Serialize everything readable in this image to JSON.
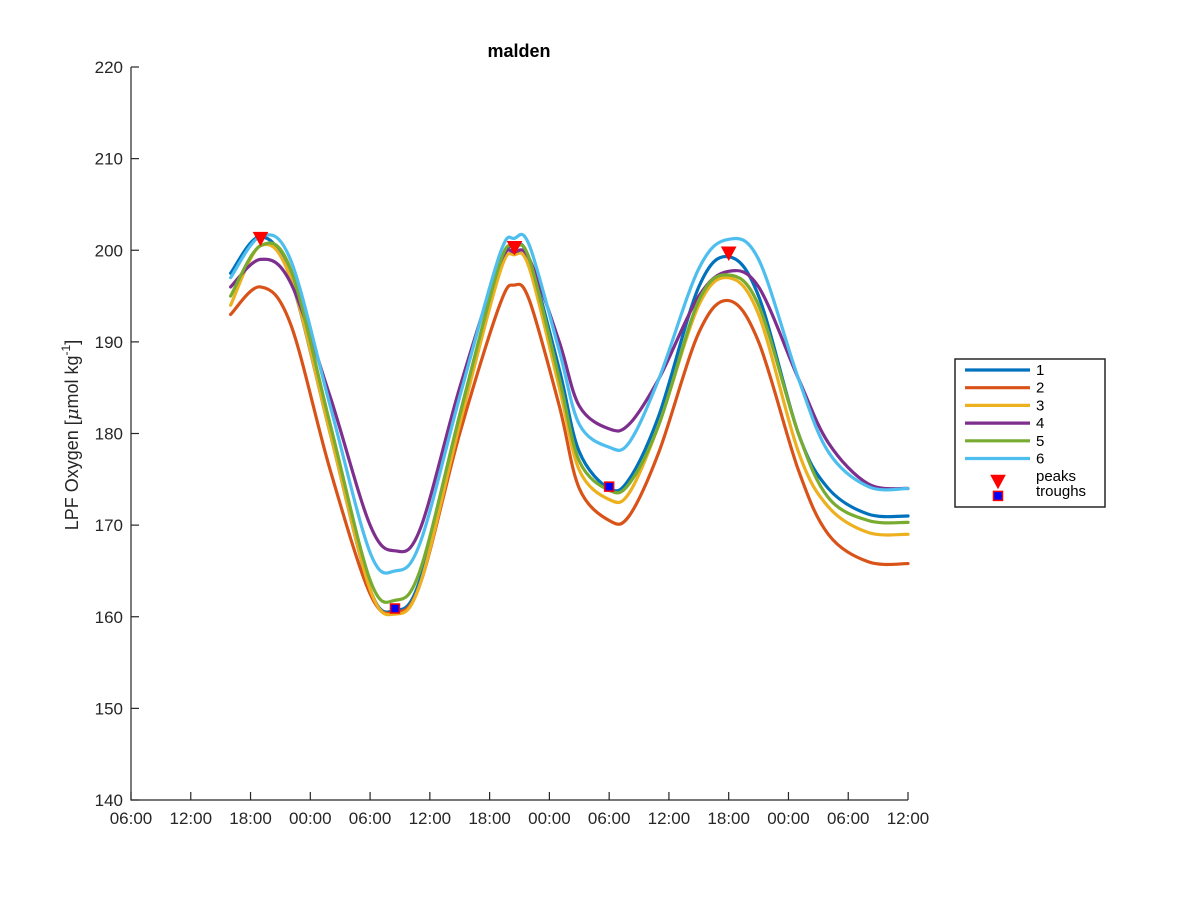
{
  "chart_data": {
    "type": "line",
    "title": "malden",
    "xlabel": "",
    "ylabel": "LPF Oxygen [μmol kg⁻¹]",
    "ylabel_parts": {
      "main": "LPF Oxygen [",
      "mu": "μ",
      "mid": "mol kg",
      "sup": "-1",
      "end": "]"
    },
    "xlim": [
      "06:00",
      "12:00 (+2 days)"
    ],
    "xlim_hours": [
      0,
      78
    ],
    "x_ticks": [
      "06:00",
      "12:00",
      "18:00",
      "00:00",
      "06:00",
      "12:00",
      "18:00",
      "00:00",
      "06:00",
      "12:00",
      "18:00",
      "00:00",
      "06:00",
      "12:00"
    ],
    "ylim": [
      140,
      220
    ],
    "y_ticks": [
      140,
      150,
      160,
      170,
      180,
      190,
      200,
      210,
      220
    ],
    "grid": false,
    "legend_position": "right",
    "series": [
      {
        "name": "1",
        "color": "#0072BD",
        "points": [
          [
            10,
            197.5
          ],
          [
            13,
            201.5
          ],
          [
            16,
            197
          ],
          [
            20,
            180
          ],
          [
            24,
            163
          ],
          [
            26.5,
            160.7
          ],
          [
            29,
            164
          ],
          [
            33,
            182
          ],
          [
            37,
            198
          ],
          [
            38.5,
            200.5
          ],
          [
            40,
            199
          ],
          [
            43,
            187
          ],
          [
            45,
            178
          ],
          [
            48,
            174
          ],
          [
            50,
            175
          ],
          [
            53,
            182
          ],
          [
            57,
            196
          ],
          [
            60,
            199.3
          ],
          [
            63,
            195
          ],
          [
            67,
            180
          ],
          [
            70,
            174
          ],
          [
            74,
            171.2
          ],
          [
            78,
            171
          ]
        ]
      },
      {
        "name": "2",
        "color": "#D95319",
        "points": [
          [
            10,
            193
          ],
          [
            13,
            196
          ],
          [
            16,
            192
          ],
          [
            20,
            176
          ],
          [
            24,
            162.5
          ],
          [
            26.5,
            160.5
          ],
          [
            29,
            163.5
          ],
          [
            33,
            180
          ],
          [
            37,
            194
          ],
          [
            38.5,
            196.2
          ],
          [
            40,
            194.5
          ],
          [
            43,
            183
          ],
          [
            45,
            174
          ],
          [
            48,
            170.5
          ],
          [
            50,
            171
          ],
          [
            53,
            178
          ],
          [
            57,
            191
          ],
          [
            60,
            194.5
          ],
          [
            63,
            190
          ],
          [
            67,
            176
          ],
          [
            70,
            169
          ],
          [
            74,
            166
          ],
          [
            78,
            165.8
          ]
        ]
      },
      {
        "name": "3",
        "color": "#EDB120",
        "points": [
          [
            10,
            194
          ],
          [
            13,
            200.5
          ],
          [
            16,
            197
          ],
          [
            20,
            180
          ],
          [
            24,
            163
          ],
          [
            26.5,
            160.3
          ],
          [
            29,
            163.5
          ],
          [
            33,
            181
          ],
          [
            37,
            197.5
          ],
          [
            38.5,
            199.5
          ],
          [
            40,
            198
          ],
          [
            43,
            185
          ],
          [
            45,
            176
          ],
          [
            48,
            172.8
          ],
          [
            50,
            173.5
          ],
          [
            53,
            181
          ],
          [
            57,
            194
          ],
          [
            60,
            197
          ],
          [
            63,
            193
          ],
          [
            67,
            178
          ],
          [
            70,
            172
          ],
          [
            74,
            169.2
          ],
          [
            78,
            169
          ]
        ]
      },
      {
        "name": "4",
        "color": "#7E2F8E",
        "points": [
          [
            10,
            196
          ],
          [
            13,
            199
          ],
          [
            16,
            196.5
          ],
          [
            20,
            184
          ],
          [
            24,
            170
          ],
          [
            26.5,
            167.2
          ],
          [
            29,
            169.5
          ],
          [
            33,
            185
          ],
          [
            37,
            198.5
          ],
          [
            38.5,
            199.8
          ],
          [
            40,
            199
          ],
          [
            43,
            190
          ],
          [
            45,
            183
          ],
          [
            48,
            180.5
          ],
          [
            50,
            181
          ],
          [
            53,
            186
          ],
          [
            57,
            195
          ],
          [
            60,
            197.7
          ],
          [
            63,
            196
          ],
          [
            67,
            186
          ],
          [
            70,
            179
          ],
          [
            74,
            174.5
          ],
          [
            78,
            174
          ]
        ]
      },
      {
        "name": "5",
        "color": "#77AC30",
        "points": [
          [
            10,
            195
          ],
          [
            13,
            200.5
          ],
          [
            16,
            198
          ],
          [
            20,
            181
          ],
          [
            24,
            164
          ],
          [
            26.5,
            161.8
          ],
          [
            29,
            165
          ],
          [
            33,
            182
          ],
          [
            37,
            198.5
          ],
          [
            38.5,
            200.3
          ],
          [
            40,
            199
          ],
          [
            43,
            186
          ],
          [
            45,
            177
          ],
          [
            48,
            173.8
          ],
          [
            50,
            174.5
          ],
          [
            53,
            181
          ],
          [
            57,
            194.5
          ],
          [
            60,
            197.3
          ],
          [
            63,
            194
          ],
          [
            67,
            180
          ],
          [
            70,
            173
          ],
          [
            74,
            170.5
          ],
          [
            78,
            170.3
          ]
        ]
      },
      {
        "name": "6",
        "color": "#4DBEEE",
        "points": [
          [
            10,
            197
          ],
          [
            13,
            201.5
          ],
          [
            16,
            199
          ],
          [
            20,
            183
          ],
          [
            24,
            167
          ],
          [
            26.5,
            165
          ],
          [
            29,
            168
          ],
          [
            33,
            184
          ],
          [
            37,
            199.5
          ],
          [
            38.5,
            201.3
          ],
          [
            40,
            200.5
          ],
          [
            43,
            189
          ],
          [
            45,
            181
          ],
          [
            48,
            178.5
          ],
          [
            50,
            179
          ],
          [
            53,
            186
          ],
          [
            57,
            198
          ],
          [
            60,
            201.2
          ],
          [
            63,
            199
          ],
          [
            67,
            186
          ],
          [
            70,
            178
          ],
          [
            74,
            174.2
          ],
          [
            78,
            174
          ]
        ]
      }
    ],
    "markers": [
      {
        "name": "peaks",
        "shape": "triangle-down",
        "color": "#FF0000",
        "points": [
          [
            13,
            201.3
          ],
          [
            38.5,
            200.3
          ],
          [
            60,
            199.7
          ]
        ]
      },
      {
        "name": "troughs",
        "shape": "square",
        "color": "#0000FF",
        "edge": "#FF0000",
        "points": [
          [
            26.5,
            160.9
          ],
          [
            48,
            174.2
          ]
        ]
      }
    ]
  }
}
